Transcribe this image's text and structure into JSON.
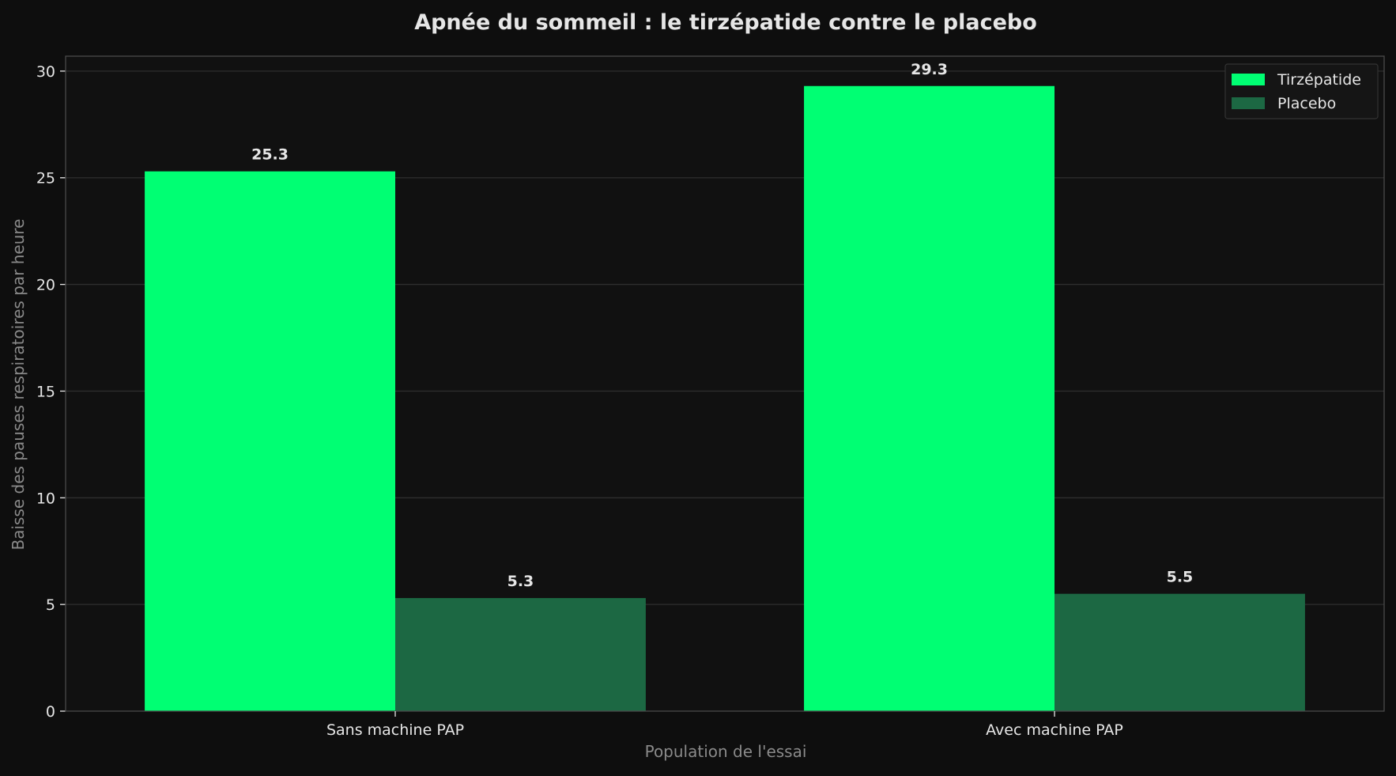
{
  "chart_data": {
    "type": "bar",
    "title": "Apnée du sommeil : le tirzépatide contre le placebo",
    "xlabel": "Population de l'essai",
    "ylabel": "Baisse des pauses respiratoires par heure",
    "categories": [
      "Sans machine PAP",
      "Avec machine PAP"
    ],
    "series": [
      {
        "name": "Tirzépatide",
        "values": [
          25.3,
          29.3
        ],
        "labels": [
          "25.3",
          "29.3"
        ],
        "color": "#00ff73"
      },
      {
        "name": "Placebo",
        "values": [
          5.3,
          5.5
        ],
        "labels": [
          "5.3",
          "5.5"
        ],
        "color": "#1c6843"
      }
    ],
    "ylim": [
      0,
      30.7
    ],
    "yticks": [
      0,
      5,
      10,
      15,
      20,
      25,
      30
    ],
    "ytick_labels": [
      "0",
      "5",
      "10",
      "15",
      "20",
      "25",
      "30"
    ],
    "grid": true,
    "legend": "top-right"
  },
  "colors": {
    "background": "#0e0e0e",
    "plot_background": "#111111",
    "grid": "#2e2e2e",
    "axis": "#4a4a4a",
    "text": "#e6e6e6",
    "label": "#8a8a8a"
  }
}
